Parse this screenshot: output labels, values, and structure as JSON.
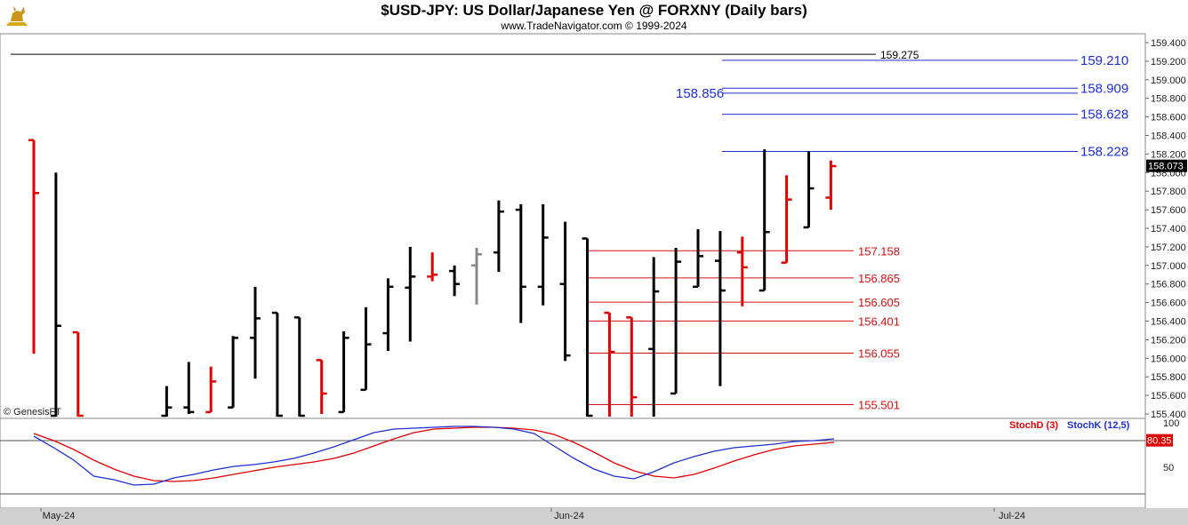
{
  "header": {
    "title": "$USD-JPY:  US Dollar/Japanese Yen @ FORXNY  (Daily bars)",
    "subtitle": "www.TradeNavigator.com © 1999-2024"
  },
  "watermark": "© GenesisFT",
  "colors": {
    "up": "#000000",
    "down": "#e00000",
    "neutral": "#888888",
    "blue_levels": "#1f2fd0",
    "red_levels": "#d01010",
    "stochD": "#e00000",
    "stochK": "#1f2fd0"
  },
  "chart_data": {
    "type": "ohlc",
    "price_axis": {
      "min": 155.4,
      "max": 159.4,
      "ticks": [
        "159.400",
        "159.200",
        "159.000",
        "158.800",
        "158.600",
        "158.400",
        "158.200",
        "158.000",
        "157.800",
        "157.600",
        "157.400",
        "157.200",
        "157.000",
        "156.800",
        "156.600",
        "156.400",
        "156.200",
        "156.000",
        "155.800",
        "155.600",
        "155.400"
      ]
    },
    "last_price": "158.073",
    "x_labels": [
      "May-24",
      "Jun-24",
      "Jul-24"
    ],
    "bars": [
      {
        "h": 158.35,
        "l": 156.05,
        "o": 158.35,
        "c": 157.78,
        "color": "down"
      },
      {
        "h": 158.0,
        "l": 155.0,
        "o": 155.0,
        "c": 156.35,
        "color": "up"
      },
      {
        "h": 156.28,
        "l": 155.0,
        "o": 156.28,
        "c": 155.2,
        "color": "down"
      },
      {
        "h": null,
        "l": null,
        "o": null,
        "c": null,
        "color": "none"
      },
      {
        "h": null,
        "l": null,
        "o": null,
        "c": null,
        "color": "none"
      },
      {
        "h": null,
        "l": null,
        "o": null,
        "c": null,
        "color": "none"
      },
      {
        "h": 155.7,
        "l": 155.2,
        "o": 155.2,
        "c": 155.47,
        "color": "up"
      },
      {
        "h": 155.96,
        "l": 155.4,
        "o": 155.47,
        "c": 155.42,
        "color": "up"
      },
      {
        "h": 155.91,
        "l": 155.42,
        "o": 155.42,
        "c": 155.75,
        "color": "down"
      },
      {
        "h": 156.24,
        "l": 155.47,
        "o": 155.47,
        "c": 156.22,
        "color": "up"
      },
      {
        "h": 156.77,
        "l": 155.78,
        "o": 156.22,
        "c": 156.43,
        "color": "up"
      },
      {
        "h": 156.49,
        "l": 155.3,
        "o": 156.49,
        "c": 155.3,
        "color": "up"
      },
      {
        "h": 156.44,
        "l": 155.3,
        "o": 156.44,
        "c": 155.3,
        "color": "up"
      },
      {
        "h": 155.98,
        "l": 155.4,
        "o": 155.98,
        "c": 155.62,
        "color": "down"
      },
      {
        "h": 156.29,
        "l": 155.42,
        "o": 155.42,
        "c": 156.22,
        "color": "up"
      },
      {
        "h": 156.55,
        "l": 155.66,
        "o": 155.66,
        "c": 156.15,
        "color": "up"
      },
      {
        "h": 156.86,
        "l": 156.08,
        "o": 156.27,
        "c": 156.77,
        "color": "up"
      },
      {
        "h": 157.2,
        "l": 156.18,
        "o": 156.76,
        "c": 156.88,
        "color": "up"
      },
      {
        "h": 157.14,
        "l": 156.83,
        "o": 156.88,
        "c": 156.9,
        "color": "down"
      },
      {
        "h": 157.0,
        "l": 156.67,
        "o": 156.94,
        "c": 156.8,
        "color": "up"
      },
      {
        "h": 157.19,
        "l": 156.58,
        "o": 157.0,
        "c": 157.12,
        "color": "neutral"
      },
      {
        "h": 157.7,
        "l": 156.93,
        "o": 157.14,
        "c": 157.58,
        "color": "up"
      },
      {
        "h": 157.66,
        "l": 156.38,
        "o": 157.6,
        "c": 156.77,
        "color": "up"
      },
      {
        "h": 157.66,
        "l": 156.57,
        "o": 156.77,
        "c": 157.3,
        "color": "up"
      },
      {
        "h": 157.47,
        "l": 155.97,
        "o": 156.8,
        "c": 156.03,
        "color": "up"
      },
      {
        "h": 157.29,
        "l": 155.0,
        "o": 157.29,
        "c": 155.2,
        "color": "up"
      },
      {
        "h": 156.49,
        "l": 155.0,
        "o": 156.49,
        "c": 156.07,
        "color": "down"
      },
      {
        "h": 156.44,
        "l": 155.0,
        "o": 156.44,
        "c": 155.58,
        "color": "down"
      },
      {
        "h": 157.09,
        "l": 155.0,
        "o": 156.1,
        "c": 156.72,
        "color": "up"
      },
      {
        "h": 157.19,
        "l": 155.62,
        "o": 155.62,
        "c": 157.04,
        "color": "up"
      },
      {
        "h": 157.39,
        "l": 156.77,
        "o": 156.77,
        "c": 157.1,
        "color": "up"
      },
      {
        "h": 157.37,
        "l": 155.7,
        "o": 157.05,
        "c": 156.73,
        "color": "up"
      },
      {
        "h": 157.31,
        "l": 156.56,
        "o": 157.14,
        "c": 156.98,
        "color": "down"
      },
      {
        "h": 158.25,
        "l": 156.73,
        "o": 156.73,
        "c": 157.36,
        "color": "up"
      },
      {
        "h": 157.97,
        "l": 157.03,
        "o": 157.03,
        "c": 157.71,
        "color": "down"
      },
      {
        "h": 158.23,
        "l": 157.41,
        "o": 157.41,
        "c": 157.83,
        "color": "up"
      },
      {
        "h": 158.13,
        "l": 157.6,
        "o": 157.73,
        "c": 158.07,
        "color": "down"
      }
    ],
    "blue_levels": [
      {
        "value": 159.21,
        "label": "159.210"
      },
      {
        "value": 158.909,
        "label": "158.909"
      },
      {
        "value": 158.628,
        "label": "158.628"
      },
      {
        "value": 158.228,
        "label": "158.228"
      }
    ],
    "blue_level_left": {
      "value": 158.856,
      "label": "158.856"
    },
    "black_level": {
      "value": 159.275,
      "label": "159.275"
    },
    "red_levels": [
      {
        "value": 157.158,
        "label": "157.158"
      },
      {
        "value": 156.865,
        "label": "156.865"
      },
      {
        "value": 156.605,
        "label": "156.605"
      },
      {
        "value": 156.401,
        "label": "156.401"
      },
      {
        "value": 156.055,
        "label": "156.055"
      },
      {
        "value": 155.501,
        "label": "155.501"
      }
    ],
    "stochastic": {
      "axis_ticks": [
        "100",
        "50"
      ],
      "axis_range": [
        20,
        100
      ],
      "ref_lines": [
        80,
        20
      ],
      "last_value": "80.35",
      "legend_d": "StochD (3)",
      "legend_k": "StochK (12,5)",
      "stochD": [
        88,
        80,
        70,
        58,
        48,
        40,
        35,
        34,
        35,
        38,
        42,
        46,
        50,
        53,
        56,
        60,
        66,
        74,
        82,
        89,
        93,
        94,
        95,
        95,
        94,
        92,
        87,
        78,
        67,
        55,
        46,
        40,
        38,
        42,
        49,
        57,
        64,
        70,
        74,
        76,
        78
      ],
      "stochK": [
        85,
        72,
        58,
        40,
        36,
        30,
        31,
        38,
        42,
        47,
        51,
        53,
        56,
        60,
        66,
        73,
        81,
        89,
        93,
        94,
        95,
        96,
        96,
        95,
        93,
        88,
        74,
        60,
        48,
        40,
        37,
        45,
        55,
        62,
        68,
        72,
        74,
        76,
        79,
        80,
        82
      ]
    }
  }
}
